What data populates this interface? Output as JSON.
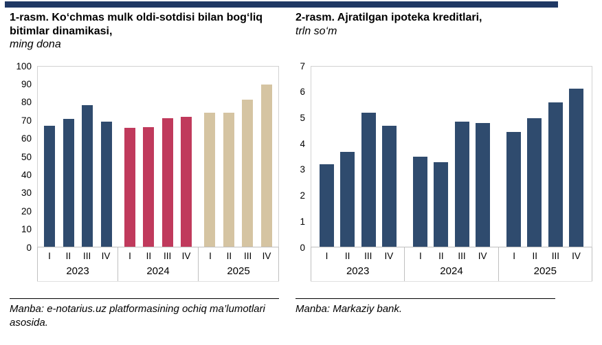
{
  "page": {
    "top_strip_color": "#1F3864",
    "background": "#ffffff"
  },
  "panels": [
    {
      "title": "1-rasm. Ko‘chmas mulk oldi-sotdisi bilan bog‘liq bitimlar dinamikasi,",
      "subtitle": "ming dona",
      "source": "Manba: e-notarius.uz platformasining ochiq ma’lumotlari asosida."
    },
    {
      "title": "2-rasm. Ajratilgan ipoteka kreditlari,",
      "subtitle": "trln so‘m",
      "source": "Manba: Markaziy bank."
    }
  ],
  "chart_data": [
    {
      "type": "bar",
      "title": "1-rasm. Ko‘chmas mulk oldi-sotdisi bilan bog‘liq bitimlar dinamikasi",
      "ylabel": "ming dona",
      "ylim": [
        0,
        100
      ],
      "ytick_step": 10,
      "grid": false,
      "legend": "none",
      "quarters": [
        "I",
        "II",
        "III",
        "IV"
      ],
      "groups": [
        {
          "year": "2023",
          "color": "#2F4B6E",
          "values": [
            67,
            71,
            78.5,
            69.5
          ]
        },
        {
          "year": "2024",
          "color": "#C03A5C",
          "values": [
            66,
            66.5,
            71.5,
            72
          ]
        },
        {
          "year": "2025",
          "color": "#D5C4A2",
          "values": [
            74.5,
            74.5,
            81.5,
            90
          ]
        }
      ]
    },
    {
      "type": "bar",
      "title": "2-rasm. Ajratilgan ipoteka kreditlari",
      "ylabel": "trln so‘m",
      "ylim": [
        0,
        7
      ],
      "ytick_step": 1,
      "grid": false,
      "legend": "none",
      "quarters": [
        "I",
        "II",
        "III",
        "IV"
      ],
      "groups": [
        {
          "year": "2023",
          "color": "#2F4B6E",
          "values": [
            3.2,
            3.7,
            5.2,
            4.7
          ]
        },
        {
          "year": "2024",
          "color": "#2F4B6E",
          "values": [
            3.5,
            3.3,
            4.85,
            4.8
          ]
        },
        {
          "year": "2025",
          "color": "#2F4B6E",
          "values": [
            4.45,
            5.0,
            5.6,
            6.15
          ]
        }
      ]
    }
  ]
}
